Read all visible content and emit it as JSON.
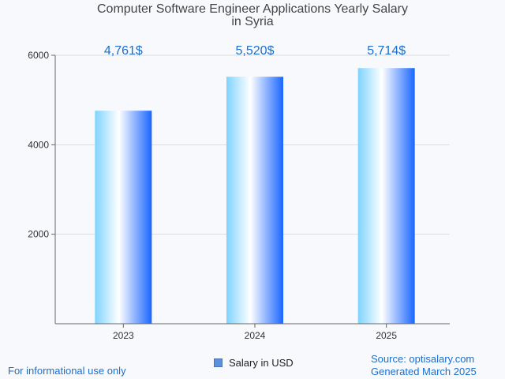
{
  "title_line1": "Computer Software Engineer Applications Yearly Salary",
  "title_line2": "in Syria",
  "footer": {
    "left": "For informational use only",
    "source": "Source: optisalary.com",
    "generated": "Generated March 2025"
  },
  "legend": {
    "label": "Salary in USD",
    "color": "#5b8fe0"
  },
  "chart_data": {
    "type": "bar",
    "title": "Computer Software Engineer Applications Yearly Salary in Syria",
    "categories": [
      "2023",
      "2024",
      "2025"
    ],
    "series": [
      {
        "name": "Salary in USD",
        "values": [
          4761,
          5520,
          5714
        ]
      }
    ],
    "data_labels": [
      "4,761$",
      "5,520$",
      "5,714$"
    ],
    "yticks": [
      2000,
      4000,
      6000
    ],
    "ylim": [
      0,
      6000
    ],
    "grid": true,
    "legend_position": "bottom",
    "colors": {
      "label": "#1a6fd0",
      "bar_light": "#e6f6ff",
      "bar_cyan": "#7fd3ff",
      "bar_blue": "#1a66ff"
    }
  }
}
